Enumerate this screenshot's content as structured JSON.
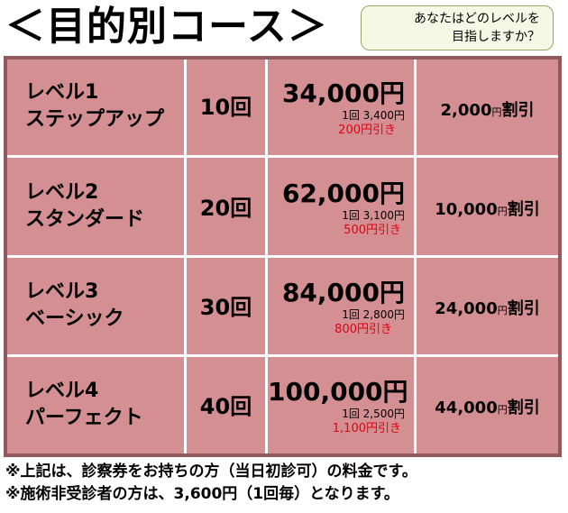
{
  "title": "＜目的別コース＞",
  "bubble": {
    "line1": "あなたはどのレベルを",
    "line2": "目指しますか？"
  },
  "courses": [
    {
      "name1": "レベル1",
      "name2": "ステップアップ",
      "count": "10回",
      "price": "34,000円",
      "per": "1回 3,400円",
      "saving": "200円引き",
      "discount_amount": "2,000",
      "discount_yen": "円",
      "discount_suffix": "割引"
    },
    {
      "name1": "レベル2",
      "name2": "スタンダード",
      "count": "20回",
      "price": "62,000円",
      "per": "1回 3,100円",
      "saving": "500円引き",
      "discount_amount": "10,000",
      "discount_yen": "円",
      "discount_suffix": "割引"
    },
    {
      "name1": "レベル3",
      "name2": "ベーシック",
      "count": "30回",
      "price": "84,000円",
      "per": "1回 2,800円",
      "saving": "800円引き",
      "discount_amount": "24,000",
      "discount_yen": "円",
      "discount_suffix": "割引"
    },
    {
      "name1": "レベル4",
      "name2": "パーフェクト",
      "count": "40回",
      "price": "100,000円",
      "per": "1回 2,500円",
      "saving": "1,100円引き",
      "discount_amount": "44,000",
      "discount_yen": "円",
      "discount_suffix": "割引"
    }
  ],
  "notes": [
    "※上記は、診察券をお持ちの方（当日初診可）の料金です。",
    "※施術非受診者の方は、3,600円（1回毎）となります。"
  ],
  "colors": {
    "table_bg": "#d38f92",
    "table_border": "#8e5a5d",
    "saving_text": "#e60012",
    "bubble_bg": "#f6f8e6"
  }
}
